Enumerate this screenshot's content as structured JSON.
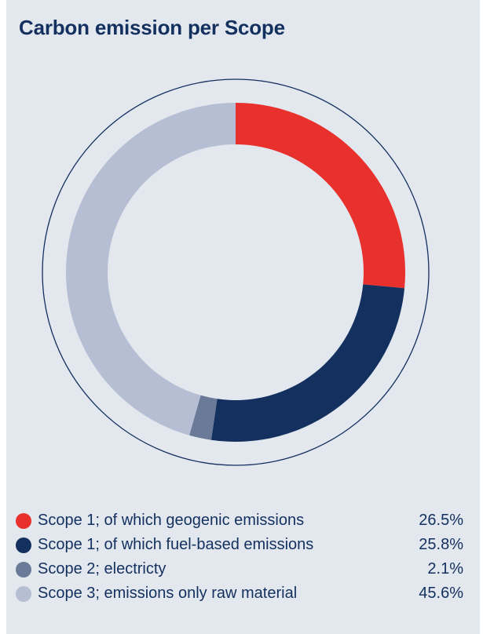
{
  "chart_data": {
    "type": "pie",
    "style": "donut",
    "title": "Carbon emission per Scope",
    "slices": [
      {
        "label": "Scope 1; of which geogenic emissions",
        "value": 26.5,
        "display": "26.5%",
        "color": "#e8312d"
      },
      {
        "label": "Scope 1; of which fuel-based emissions",
        "value": 25.8,
        "display": "25.8%",
        "color": "#13305f"
      },
      {
        "label": "Scope 2; electricty",
        "value": 2.1,
        "display": "2.1%",
        "color": "#6c7a99"
      },
      {
        "label": "Scope 3; emissions only raw material",
        "value": 45.6,
        "display": "45.6%",
        "color": "#b5bed3"
      }
    ],
    "legend_position": "bottom",
    "outer_ring": true,
    "ring_color": "#13305f"
  }
}
